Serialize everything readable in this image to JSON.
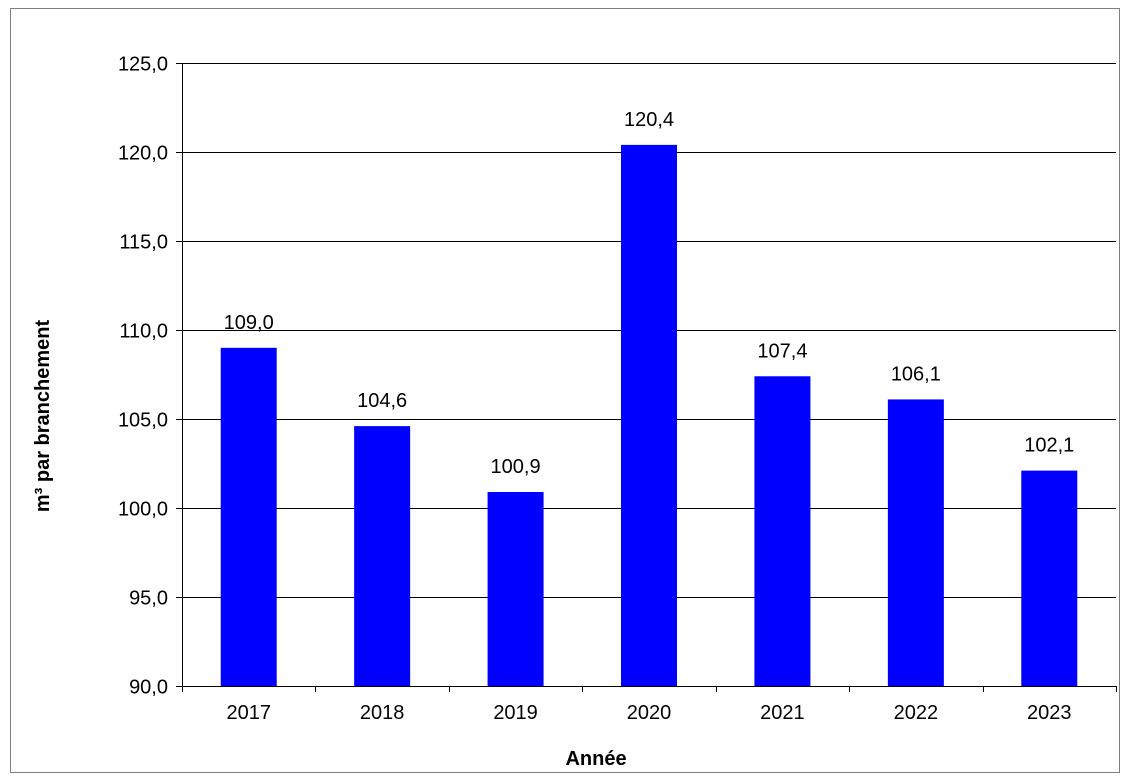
{
  "chart_data": {
    "type": "bar",
    "categories": [
      "2017",
      "2018",
      "2019",
      "2020",
      "2021",
      "2022",
      "2023"
    ],
    "values": [
      109.0,
      104.6,
      100.9,
      120.4,
      107.4,
      106.1,
      102.1
    ],
    "value_labels": [
      "109,0",
      "104,6",
      "100,9",
      "120,4",
      "107,4",
      "106,1",
      "102,1"
    ],
    "xlabel": "Année",
    "ylabel": "m³ par branchement",
    "ylim": [
      90,
      125
    ],
    "yticks": [
      90,
      95,
      100,
      105,
      110,
      115,
      120,
      125
    ],
    "ytick_labels": [
      "90,0",
      "95,0",
      "100,0",
      "105,0",
      "110,0",
      "115,0",
      "120,0",
      "125,0"
    ],
    "grid": true,
    "legend": "none",
    "colors": {
      "bar": "#0000FF",
      "grid": "#000000"
    }
  }
}
